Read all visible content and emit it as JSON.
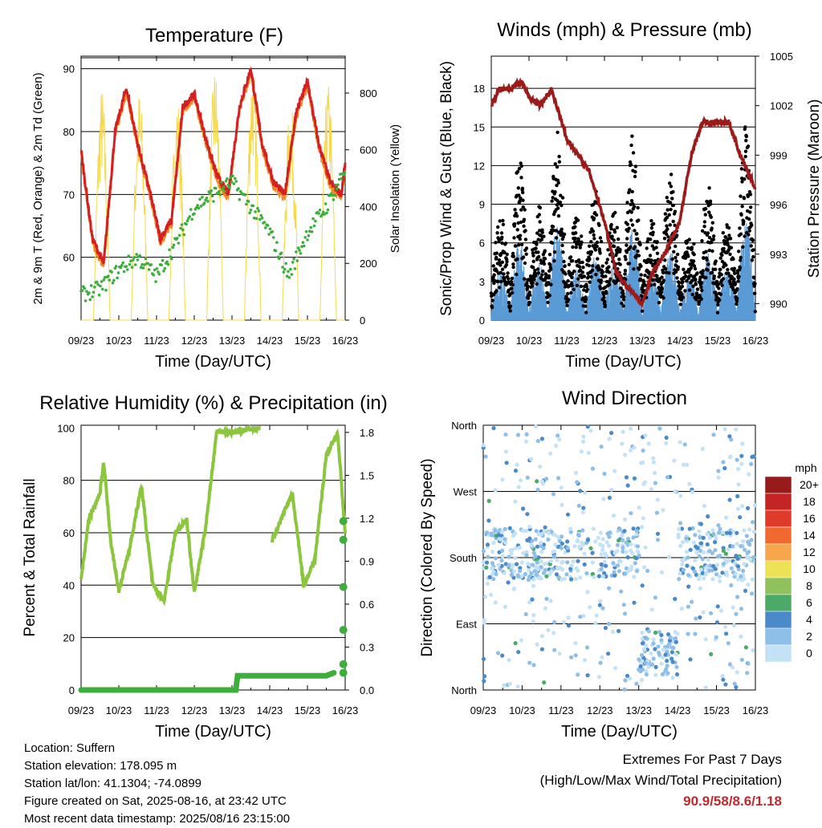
{
  "colors": {
    "temp_2m": "#d42020",
    "temp_9m": "#f08a24",
    "dewpoint": "#3cae3c",
    "solar": "#f5d94a",
    "wind_sonic": "#5b9bd5",
    "gust": "#000000",
    "pressure": "#9b1b1b",
    "rh": "#8cc63f",
    "rain": "#3cae3c",
    "extremes_text": "#c0282d"
  },
  "x_ticks": [
    "09/23",
    "10/23",
    "11/23",
    "12/23",
    "13/23",
    "14/23",
    "15/23",
    "16/23"
  ],
  "chart_data": [
    {
      "type": "line",
      "id": "temperature",
      "title": "Temperature (F)",
      "xlabel": "Time (Day/UTC)",
      "ylabel": "2m & 9m T (Red, Orange) & 2m Td (Green)",
      "ylabel_right": "Solar Insolation (Yellow)",
      "x_ticks": [
        "09/23",
        "10/23",
        "11/23",
        "12/23",
        "13/23",
        "14/23",
        "15/23",
        "16/23"
      ],
      "y_ticks": [
        60,
        70,
        80,
        90
      ],
      "ylim": [
        50,
        92
      ],
      "y_ticks_right": [
        0,
        200,
        400,
        600,
        800
      ],
      "ylim_right": [
        0,
        930
      ],
      "series": [
        {
          "name": "2m T",
          "x_days": [
            0,
            0.3,
            0.6,
            0.9,
            1.2,
            1.5,
            1.8,
            2.1,
            2.4,
            2.7,
            3.0,
            3.3,
            3.6,
            3.9,
            4.2,
            4.5,
            4.8,
            5.1,
            5.4,
            5.7,
            6.0,
            6.3,
            6.6,
            6.9,
            7.0
          ],
          "values": [
            77,
            63,
            59,
            80,
            87,
            78,
            71,
            63,
            66,
            84,
            86,
            79,
            73,
            70,
            84,
            90,
            78,
            72,
            70,
            83,
            88,
            78,
            72,
            70,
            75
          ]
        },
        {
          "name": "2m Td",
          "x_days": [
            0,
            0.5,
            1.0,
            1.5,
            2.0,
            2.5,
            3.0,
            3.5,
            4.0,
            4.5,
            5.0,
            5.5,
            6.0,
            6.5,
            7.0
          ],
          "values": [
            54,
            55,
            58,
            60,
            57,
            62,
            68,
            70,
            72,
            68,
            64,
            57,
            64,
            68,
            74
          ]
        },
        {
          "name": "Solar",
          "day_peaks": [
            830,
            820,
            800,
            900,
            920,
            780,
            840,
            870
          ]
        }
      ]
    },
    {
      "type": "scatter",
      "id": "winds",
      "title": "Winds (mph) & Pressure (mb)",
      "xlabel": "Time (Day/UTC)",
      "ylabel": "Sonic/Prop Wind & Gust (Blue, Black)",
      "ylabel_right": "Station Pressure (Maroon)",
      "x_ticks": [
        "09/23",
        "10/23",
        "11/23",
        "12/23",
        "13/23",
        "14/23",
        "15/23",
        "16/23"
      ],
      "y_ticks": [
        0,
        3,
        6,
        9,
        12,
        15,
        18
      ],
      "ylim": [
        0,
        20.5
      ],
      "y_ticks_right": [
        990,
        993,
        996,
        999,
        1002,
        1005
      ],
      "ylim_right": [
        989,
        1005
      ],
      "series": [
        {
          "name": "Pressure",
          "x_days": [
            0,
            0.2,
            0.5,
            0.8,
            1.0,
            1.3,
            1.6,
            2.0,
            2.3,
            2.6,
            3.0,
            3.3,
            3.6,
            4.0,
            4.3,
            4.6,
            5.0,
            5.3,
            5.6,
            6.0,
            6.3,
            6.6,
            7.0
          ],
          "values": [
            1002,
            1003,
            1003,
            1003.5,
            1002.5,
            1002,
            1003,
            1000,
            999,
            998,
            995,
            992,
            991,
            990,
            992,
            993,
            995,
            999,
            1001,
            1001,
            1001,
            999,
            997
          ]
        }
      ]
    },
    {
      "type": "line",
      "id": "humidity",
      "title": "Relative Humidity (%) & Precipitation (in)",
      "xlabel": "Time (Day/UTC)",
      "ylabel": "Percent & Total Rainfall",
      "x_ticks": [
        "09/23",
        "10/23",
        "11/23",
        "12/23",
        "13/23",
        "14/23",
        "15/23",
        "16/23"
      ],
      "y_ticks": [
        0,
        20,
        40,
        60,
        80,
        100
      ],
      "ylim": [
        0,
        101
      ],
      "y_ticks_right": [
        "0.0",
        "0.3",
        "0.6",
        "0.9",
        "1.2",
        "1.5",
        "1.8"
      ],
      "ylim_right": [
        0,
        1.85
      ],
      "series": [
        {
          "name": "RH",
          "x_days": [
            0,
            0.2,
            0.5,
            0.6,
            0.8,
            1.0,
            1.3,
            1.6,
            1.9,
            2.2,
            2.5,
            2.8,
            3.0,
            3.3,
            3.6,
            3.9,
            4.3,
            4.6,
            4.8,
            5.0,
            5.3,
            5.6,
            5.9,
            6.2,
            6.5,
            6.8,
            7.0
          ],
          "values": [
            42,
            65,
            75,
            87,
            55,
            38,
            55,
            78,
            40,
            34,
            60,
            65,
            37,
            62,
            99,
            98,
            99,
            100,
            100,
            55,
            65,
            75,
            40,
            50,
            90,
            98,
            60
          ]
        },
        {
          "name": "Rain",
          "x_days": [
            0,
            4.1,
            4.15,
            6.5,
            6.7,
            6.75,
            6.8,
            6.85,
            6.9,
            7.0
          ],
          "values": [
            0,
            0,
            0.1,
            0.1,
            0.12,
            0.18,
            0.42,
            0.72,
            1.05,
            1.18
          ]
        }
      ]
    },
    {
      "type": "scatter",
      "id": "direction",
      "title": "Wind Direction",
      "xlabel": "Time (Day/UTC)",
      "ylabel": "Direction (Colored By Speed)",
      "x_ticks": [
        "09/23",
        "10/23",
        "11/23",
        "12/23",
        "13/23",
        "14/23",
        "15/23",
        "16/23"
      ],
      "y_ticks": [
        "North",
        "East",
        "South",
        "West",
        "North"
      ],
      "ylim": [
        0,
        360
      ],
      "legend": {
        "title": "mph",
        "labels": [
          "20+",
          "18",
          "16",
          "14",
          "12",
          "10",
          "8",
          "6",
          "4",
          "2",
          "0"
        ],
        "colors": [
          "#991a1a",
          "#c42424",
          "#e03a2a",
          "#f06a30",
          "#f7a64a",
          "#ede156",
          "#8fc15c",
          "#4caa68",
          "#4a8ac9",
          "#8ebfe8",
          "#c4e2f5"
        ]
      }
    }
  ],
  "info": {
    "location": "Location: Suffern",
    "elevation": "Station elevation: 178.095 m",
    "latlon": "Station lat/lon: 41.1304; -74.0899",
    "created": "Figure created on Sat, 2025-08-16, at 23:42 UTC",
    "recent": "Most recent data timestamp: 2025/08/16 23:15:00"
  },
  "extremes": {
    "line1": "Extremes For Past 7 Days",
    "line2": "(High/Low/Max Wind/Total Precipitation)",
    "values": "90.9/58/8.6/1.18"
  }
}
